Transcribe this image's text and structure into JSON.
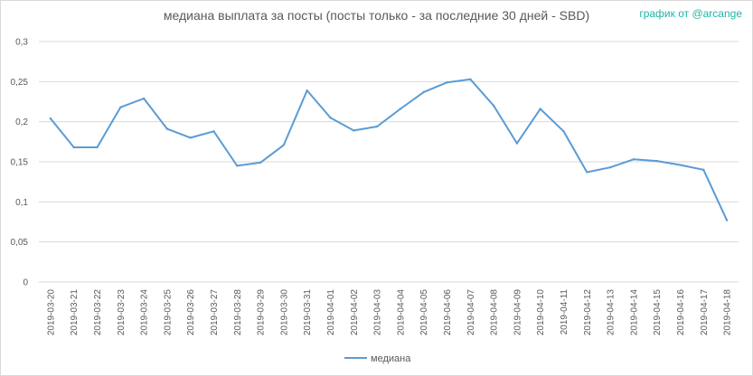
{
  "title": "медиана выплата за посты  (посты только - за последние 30 дней - SBD)",
  "credit": "график от @arcange",
  "colors": {
    "series": "#5b9bd5",
    "grid": "#d9d9d9",
    "text": "#595959",
    "credit": "#1fb5a6"
  },
  "chart_data": {
    "type": "line",
    "title": "медиана выплата за посты  (посты только - за последние 30 дней - SBD)",
    "xlabel": "",
    "ylabel": "",
    "ylim": [
      0,
      0.3
    ],
    "yticks": [
      "0",
      "0,05",
      "0,1",
      "0,15",
      "0,2",
      "0,25",
      "0,3"
    ],
    "grid": true,
    "legend_position": "bottom",
    "categories": [
      "2019-03-20",
      "2019-03-21",
      "2019-03-22",
      "2019-03-23",
      "2019-03-24",
      "2019-03-25",
      "2019-03-26",
      "2019-03-27",
      "2019-03-28",
      "2019-03-29",
      "2019-03-30",
      "2019-03-31",
      "2019-04-01",
      "2019-04-02",
      "2019-04-03",
      "2019-04-04",
      "2019-04-05",
      "2019-04-06",
      "2019-04-07",
      "2019-04-08",
      "2019-04-09",
      "2019-04-10",
      "2019-04-11",
      "2019-04-12",
      "2019-04-13",
      "2019-04-14",
      "2019-04-15",
      "2019-04-16",
      "2019-04-17",
      "2019-04-18"
    ],
    "series": [
      {
        "name": "медиана",
        "values": [
          0.204,
          0.168,
          0.168,
          0.218,
          0.229,
          0.191,
          0.18,
          0.188,
          0.145,
          0.149,
          0.171,
          0.239,
          0.205,
          0.189,
          0.194,
          0.216,
          0.237,
          0.249,
          0.253,
          0.22,
          0.173,
          0.216,
          0.188,
          0.137,
          0.143,
          0.153,
          0.151,
          0.146,
          0.14,
          0.077
        ]
      }
    ]
  }
}
